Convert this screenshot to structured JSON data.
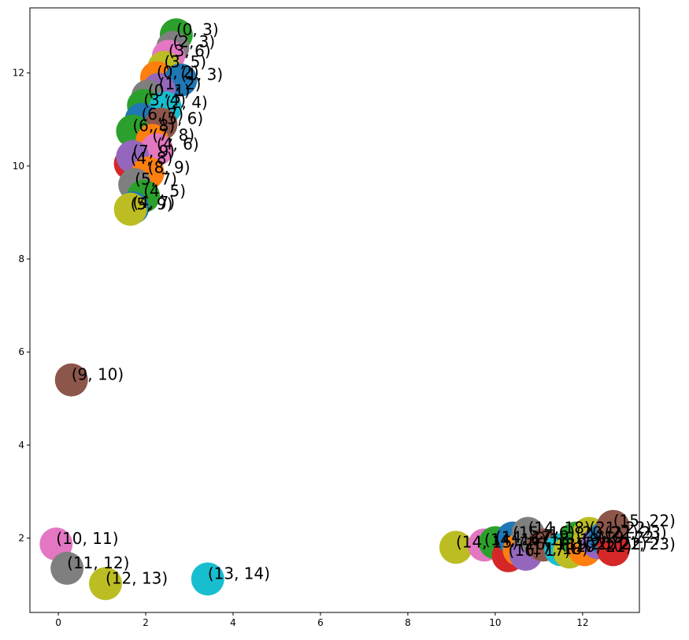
{
  "chart_data": {
    "type": "scatter",
    "title": "",
    "xlabel": "",
    "ylabel": "",
    "xlim": [
      -0.65,
      13.3
    ],
    "ylim": [
      0.4,
      13.4
    ],
    "xticks": [
      0,
      2,
      4,
      6,
      8,
      10,
      12
    ],
    "yticks": [
      2,
      4,
      6,
      8,
      10,
      12
    ],
    "grid": false,
    "colors": [
      "#1f77b4",
      "#ff7f0e",
      "#2ca02c",
      "#d62728",
      "#9467bd",
      "#8c564b",
      "#e377c2",
      "#7f7f7f",
      "#bcbd22",
      "#17becf"
    ],
    "points": [
      {
        "x": 2.7,
        "y": 12.82,
        "label": "(0, 3)",
        "color": "#2ca02c"
      },
      {
        "x": 2.62,
        "y": 12.55,
        "label": "(2, 3)",
        "color": "#7f7f7f"
      },
      {
        "x": 2.52,
        "y": 12.36,
        "label": "(3, 6)",
        "color": "#e377c2"
      },
      {
        "x": 2.42,
        "y": 12.12,
        "label": "(3, 5)",
        "color": "#bcbd22"
      },
      {
        "x": 2.25,
        "y": 11.9,
        "label": "(0, 2)",
        "color": "#ff7f0e"
      },
      {
        "x": 2.8,
        "y": 11.85,
        "label": "(1, 3)",
        "color": "#1f77b4"
      },
      {
        "x": 2.3,
        "y": 11.65,
        "label": "(1, 2)",
        "color": "#9467bd"
      },
      {
        "x": 2.05,
        "y": 11.5,
        "label": "(0, 1)",
        "color": "#7f7f7f"
      },
      {
        "x": 1.95,
        "y": 11.3,
        "label": "(3, 4)",
        "color": "#2ca02c"
      },
      {
        "x": 2.45,
        "y": 11.25,
        "label": "(2, 4)",
        "color": "#17becf"
      },
      {
        "x": 1.9,
        "y": 11.0,
        "label": "(6, 7)",
        "color": "#1f77b4"
      },
      {
        "x": 2.35,
        "y": 10.9,
        "label": "(5, 6)",
        "color": "#8c564b"
      },
      {
        "x": 1.7,
        "y": 10.75,
        "label": "(6, 8)",
        "color": "#2ca02c"
      },
      {
        "x": 2.15,
        "y": 10.55,
        "label": "(7, 8)",
        "color": "#ff7f0e"
      },
      {
        "x": 2.25,
        "y": 10.35,
        "label": "(4, 6)",
        "color": "#e377c2"
      },
      {
        "x": 1.65,
        "y": 10.05,
        "label": "(4, 8)",
        "color": "#d62728"
      },
      {
        "x": 1.7,
        "y": 10.2,
        "label": "(7, 9)",
        "color": "#9467bd"
      },
      {
        "x": 2.05,
        "y": 9.85,
        "label": "(8, 9)",
        "color": "#ff7f0e"
      },
      {
        "x": 1.75,
        "y": 9.6,
        "label": "(5, 7)",
        "color": "#7f7f7f"
      },
      {
        "x": 1.95,
        "y": 9.35,
        "label": "(4, 5)",
        "color": "#2ca02c"
      },
      {
        "x": 1.7,
        "y": 9.1,
        "label": "(4, 7)",
        "color": "#1f77b4"
      },
      {
        "x": 1.65,
        "y": 9.07,
        "label": "(5, 9)",
        "color": "#bcbd22"
      },
      {
        "x": 0.3,
        "y": 5.4,
        "label": "(9, 10)",
        "color": "#8c564b"
      },
      {
        "x": -0.05,
        "y": 1.87,
        "label": "(10, 11)",
        "color": "#e377c2"
      },
      {
        "x": 0.2,
        "y": 1.35,
        "label": "(11, 12)",
        "color": "#7f7f7f"
      },
      {
        "x": 1.08,
        "y": 1.02,
        "label": "(12, 13)",
        "color": "#bcbd22"
      },
      {
        "x": 3.42,
        "y": 1.12,
        "label": "(13, 14)",
        "color": "#17becf"
      },
      {
        "x": 9.1,
        "y": 1.8,
        "label": "(14, 15)",
        "color": "#bcbd22"
      },
      {
        "x": 9.75,
        "y": 1.85,
        "label": "(14, 16)",
        "color": "#e377c2"
      },
      {
        "x": 10.0,
        "y": 1.9,
        "label": "(14, 17)",
        "color": "#2ca02c"
      },
      {
        "x": 10.3,
        "y": 1.62,
        "label": "(16, 17)",
        "color": "#d62728"
      },
      {
        "x": 10.4,
        "y": 2.0,
        "label": "(15, 16)",
        "color": "#1f77b4"
      },
      {
        "x": 10.55,
        "y": 1.75,
        "label": "(16, 18)",
        "color": "#ff7f0e"
      },
      {
        "x": 10.7,
        "y": 1.65,
        "label": "(17, 18)",
        "color": "#9467bd"
      },
      {
        "x": 10.75,
        "y": 2.1,
        "label": "(14, 18)",
        "color": "#7f7f7f"
      },
      {
        "x": 11.1,
        "y": 1.85,
        "label": "(18, 19)",
        "color": "#8c564b"
      },
      {
        "x": 11.5,
        "y": 1.75,
        "label": "(19, 20)",
        "color": "#17becf"
      },
      {
        "x": 11.7,
        "y": 1.7,
        "label": "(19, 21)",
        "color": "#bcbd22"
      },
      {
        "x": 11.85,
        "y": 2.0,
        "label": "(20, 21)",
        "color": "#2ca02c"
      },
      {
        "x": 12.05,
        "y": 1.75,
        "label": "(20, 22)",
        "color": "#ff7f0e"
      },
      {
        "x": 12.15,
        "y": 2.1,
        "label": "(21, 22)",
        "color": "#bcbd22"
      },
      {
        "x": 12.35,
        "y": 1.9,
        "label": "(19, 22)",
        "color": "#9467bd"
      },
      {
        "x": 12.5,
        "y": 2.0,
        "label": "(22, 23)",
        "color": "#1f77b4"
      },
      {
        "x": 12.7,
        "y": 1.75,
        "label": "(21, 23)",
        "color": "#d62728"
      },
      {
        "x": 12.7,
        "y": 2.25,
        "label": "(15, 22)",
        "color": "#8c564b"
      }
    ]
  }
}
